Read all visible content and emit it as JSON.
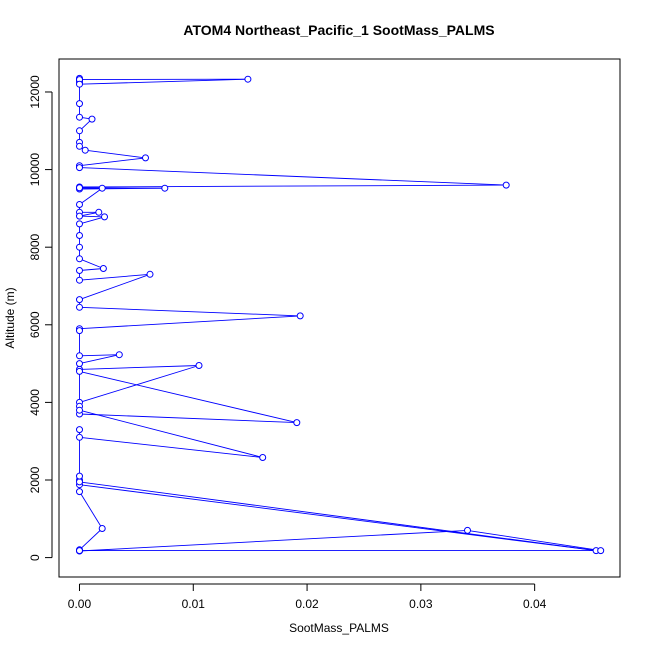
{
  "chart_data": {
    "type": "line",
    "title": "ATOM4 Northeast_Pacific_1 SootMass_PALMS",
    "xlabel": "SootMass_PALMS",
    "ylabel": "Altitude (m)",
    "xlim": [
      -0.0018,
      0.0475
    ],
    "ylim": [
      -500,
      12850
    ],
    "xticks": [
      0.0,
      0.01,
      0.02,
      0.03,
      0.04
    ],
    "xtick_labels": [
      "0.00",
      "0.01",
      "0.02",
      "0.03",
      "0.04"
    ],
    "yticks": [
      0,
      2000,
      4000,
      6000,
      8000,
      10000,
      12000
    ],
    "ytick_labels": [
      "0",
      "2000",
      "4000",
      "6000",
      "8000",
      "10000",
      "12000"
    ],
    "grid": false,
    "series": [
      {
        "color": "#0000ff",
        "marker": "open-circle",
        "x": [
          0.0,
          0.0,
          0.0,
          0.0,
          0.0148,
          0.0,
          0.0,
          0.0,
          0.0011,
          0.0,
          0.0,
          0.0,
          0.0005,
          0.0058,
          0.0,
          0.0,
          0.0375,
          0.0,
          0.0,
          0.0075,
          0.0,
          0.002,
          0.0,
          0.0,
          0.0017,
          0.0,
          0.0022,
          0.0,
          0.0,
          0.0,
          0.0,
          0.0021,
          0.0,
          0.0,
          0.0062,
          0.0,
          0.0,
          0.0194,
          0.0,
          0.0,
          0.0,
          0.0035,
          0.0,
          0.0,
          0.0105,
          0.0,
          0.0,
          0.0,
          0.0191,
          0.0,
          0.0,
          0.0161,
          0.0,
          0.0,
          0.0,
          0.0,
          0.0454,
          0.0,
          0.0,
          0.0,
          0.002,
          0.0,
          0.0,
          0.0341,
          0.0458,
          0.0
        ],
        "y": [
          12350,
          12300,
          12250,
          12320,
          12330,
          12200,
          11700,
          11350,
          11300,
          11000,
          10700,
          10600,
          10500,
          10300,
          10100,
          10050,
          9600,
          9550,
          9500,
          9520,
          9530,
          9520,
          9100,
          8900,
          8900,
          8800,
          8780,
          8600,
          8300,
          8000,
          7700,
          7450,
          7400,
          7150,
          7300,
          6650,
          6450,
          6230,
          5900,
          5850,
          5200,
          5230,
          5000,
          4850,
          4950,
          4000,
          3900,
          4800,
          3480,
          3700,
          3800,
          2580,
          3100,
          3300,
          2000,
          1880,
          180,
          1950,
          2100,
          1700,
          750,
          200,
          170,
          700,
          180,
          180
        ]
      }
    ]
  }
}
